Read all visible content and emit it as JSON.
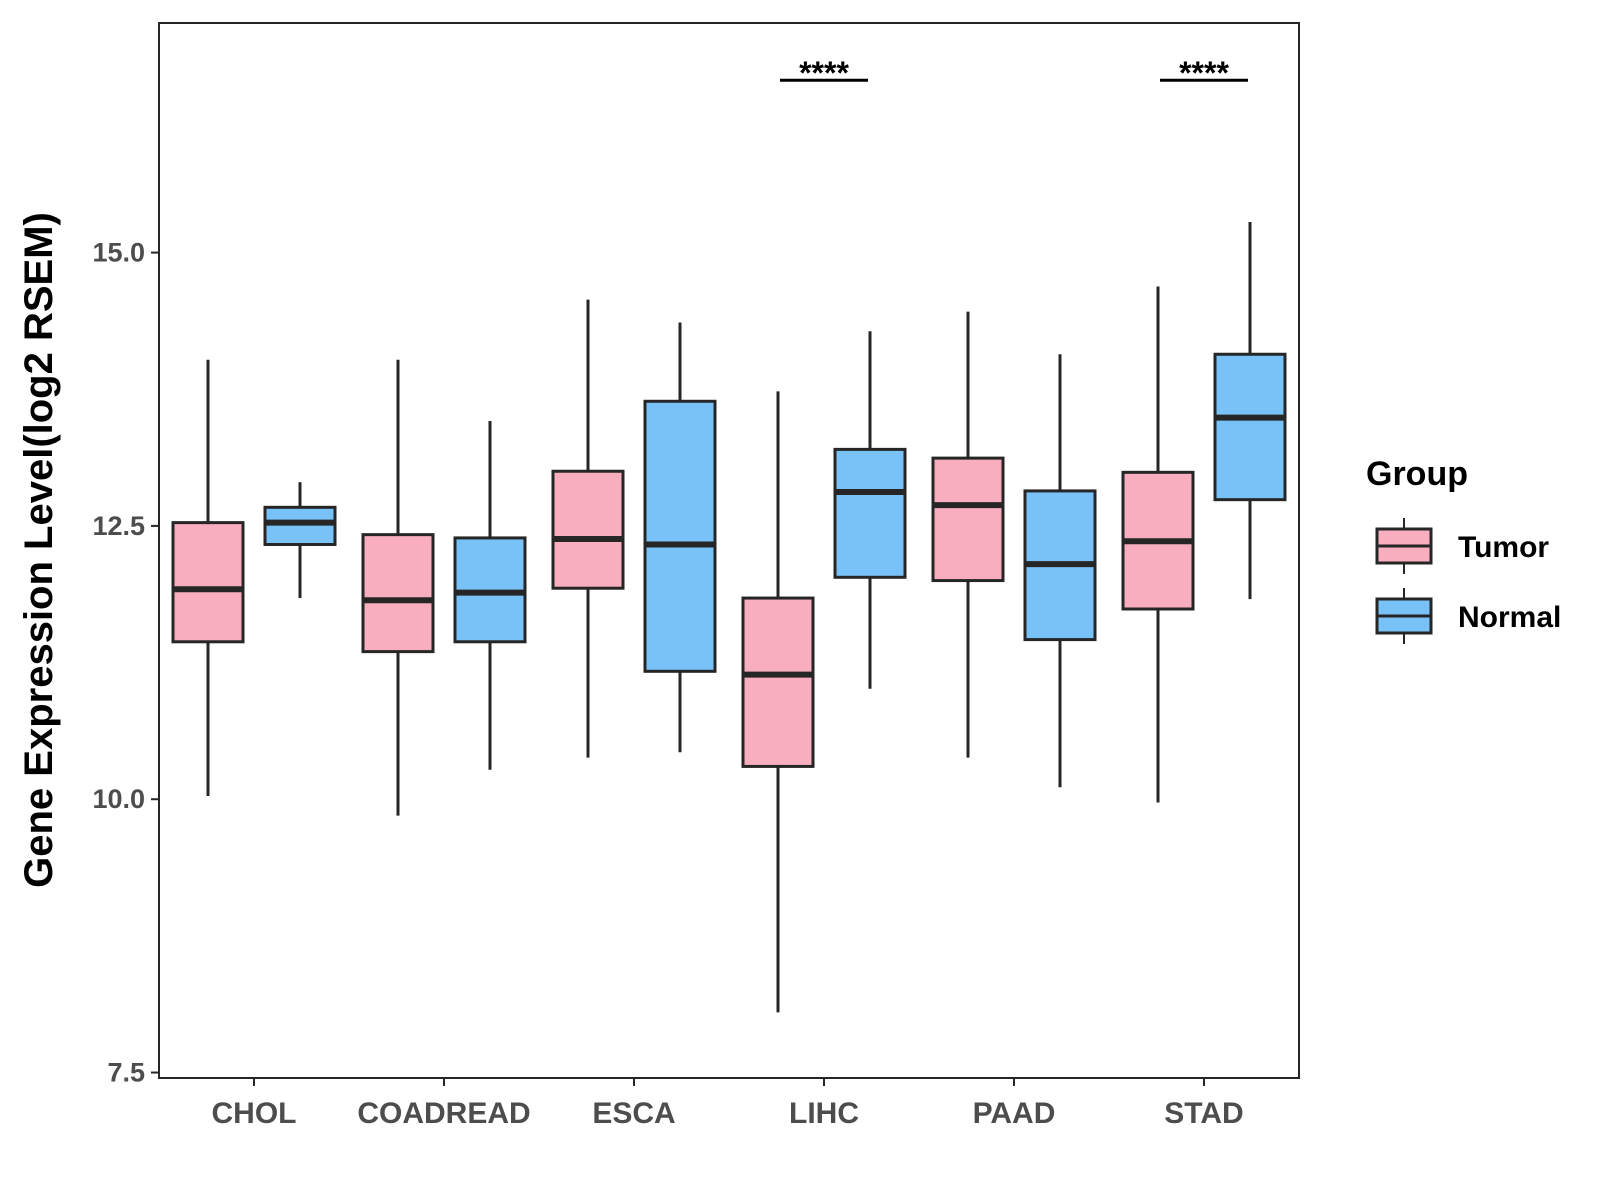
{
  "chart_data": {
    "type": "boxplot",
    "ylabel": "Gene Expression Level(log2 RSEM)",
    "xlabel": "",
    "ylim": [
      7.45,
      17.1
    ],
    "yticks": [
      "7.5",
      "10.0",
      "12.5",
      "15.0"
    ],
    "yticks_values": [
      7.5,
      10.0,
      12.5,
      15.0
    ],
    "categories": [
      "CHOL",
      "COADREAD",
      "ESCA",
      "LIHC",
      "PAAD",
      "STAD"
    ],
    "legend": {
      "title": "Group",
      "position": "right",
      "entries": [
        "Tumor",
        "Normal"
      ]
    },
    "colors": {
      "Tumor": "#F9AEC0",
      "Normal": "#79C2F8",
      "stroke": "#262626"
    },
    "series": [
      {
        "name": "Tumor",
        "boxes": [
          {
            "category": "CHOL",
            "whisker_low": 10.03,
            "q1": 11.44,
            "median": 11.92,
            "q3": 12.53,
            "whisker_high": 14.02
          },
          {
            "category": "COADREAD",
            "whisker_low": 9.85,
            "q1": 11.35,
            "median": 11.82,
            "q3": 12.42,
            "whisker_high": 14.02
          },
          {
            "category": "ESCA",
            "whisker_low": 10.38,
            "q1": 11.93,
            "median": 12.38,
            "q3": 13.0,
            "whisker_high": 14.57
          },
          {
            "category": "LIHC",
            "whisker_low": 8.05,
            "q1": 10.3,
            "median": 11.14,
            "q3": 11.84,
            "whisker_high": 13.73
          },
          {
            "category": "PAAD",
            "whisker_low": 10.38,
            "q1": 12.0,
            "median": 12.69,
            "q3": 13.12,
            "whisker_high": 14.46
          },
          {
            "category": "STAD",
            "whisker_low": 9.97,
            "q1": 11.74,
            "median": 12.36,
            "q3": 12.99,
            "whisker_high": 14.69
          }
        ]
      },
      {
        "name": "Normal",
        "boxes": [
          {
            "category": "CHOL",
            "whisker_low": 11.84,
            "q1": 12.33,
            "median": 12.53,
            "q3": 12.67,
            "whisker_high": 12.9
          },
          {
            "category": "COADREAD",
            "whisker_low": 10.27,
            "q1": 11.44,
            "median": 11.89,
            "q3": 12.39,
            "whisker_high": 13.46
          },
          {
            "category": "ESCA",
            "whisker_low": 10.43,
            "q1": 11.17,
            "median": 12.33,
            "q3": 13.64,
            "whisker_high": 14.36
          },
          {
            "category": "LIHC",
            "whisker_low": 11.01,
            "q1": 12.03,
            "median": 12.81,
            "q3": 13.2,
            "whisker_high": 14.28
          },
          {
            "category": "PAAD",
            "whisker_low": 10.11,
            "q1": 11.46,
            "median": 12.15,
            "q3": 12.82,
            "whisker_high": 14.07
          },
          {
            "category": "STAD",
            "whisker_low": 11.83,
            "q1": 12.74,
            "median": 13.49,
            "q3": 14.07,
            "whisker_high": 15.28
          }
        ]
      }
    ],
    "annotations": [
      {
        "category": "LIHC",
        "label": "****",
        "y": 16.65
      },
      {
        "category": "STAD",
        "label": "****",
        "y": 16.65
      }
    ]
  }
}
